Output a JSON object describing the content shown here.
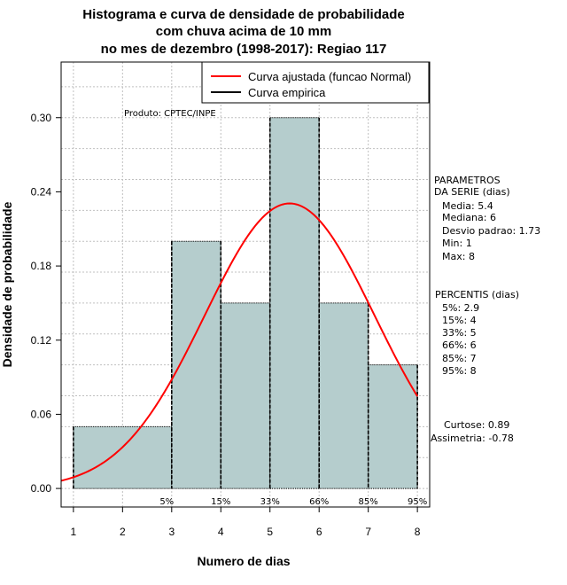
{
  "chart_data": {
    "type": "bar",
    "title_lines": [
      "Histograma e curva de densidade de probabilidade",
      "com chuva acima de 10 mm",
      "no mes de dezembro (1998-2017): Regiao 117"
    ],
    "xlabel": "Numero de dias",
    "ylabel": "Densidade de probabilidade",
    "xlim": [
      0.75,
      8.25
    ],
    "ylim": [
      -0.015,
      0.345
    ],
    "x_ticks": [
      "1",
      "2",
      "3",
      "4",
      "5",
      "6",
      "7",
      "8"
    ],
    "y_ticks": [
      "0.00",
      "0.06",
      "0.12",
      "0.18",
      "0.24",
      "0.30"
    ],
    "bins": [
      {
        "from": 1,
        "to": 3,
        "value": 0.05
      },
      {
        "from": 3,
        "to": 4,
        "value": 0.2
      },
      {
        "from": 4,
        "to": 5,
        "value": 0.15
      },
      {
        "from": 5,
        "to": 6,
        "value": 0.3
      },
      {
        "from": 6,
        "to": 7,
        "value": 0.15
      },
      {
        "from": 7,
        "to": 8,
        "value": 0.1
      }
    ],
    "fitted_curve": {
      "name": "Curva ajustada (funcao Normal)",
      "mean": 5.4,
      "sd": 1.73,
      "color": "#ff0000"
    },
    "empirical_curve": {
      "name": "Curva empirica",
      "color": "#000000"
    },
    "percentile_markers": [
      {
        "label": "5%",
        "x": 2.9
      },
      {
        "label": "15%",
        "x": 4
      },
      {
        "label": "33%",
        "x": 5
      },
      {
        "label": "66%",
        "x": 6
      },
      {
        "label": "85%",
        "x": 7
      },
      {
        "label": "95%",
        "x": 8
      }
    ],
    "bar_color": "#b5cdcd",
    "grid": true,
    "legend_position": "top-right"
  },
  "credit": "Produto: CPTEC/INPE",
  "stats": {
    "header_lines": [
      "PARAMETROS",
      "DA SERIE (dias)"
    ],
    "lines": [
      "Media: 5.4",
      "Mediana: 6",
      "Desvio padrao: 1.73",
      "Min: 1",
      "Max: 8"
    ]
  },
  "percentis": {
    "header": "PERCENTIS (dias)",
    "lines": [
      "5%: 2.9",
      "15%: 4",
      "33%: 5",
      "66%: 6",
      "85%: 7",
      "95%: 8"
    ]
  },
  "shape": {
    "curtose": "Curtose: 0.89",
    "assimetria": "Assimetria: -0.78"
  }
}
